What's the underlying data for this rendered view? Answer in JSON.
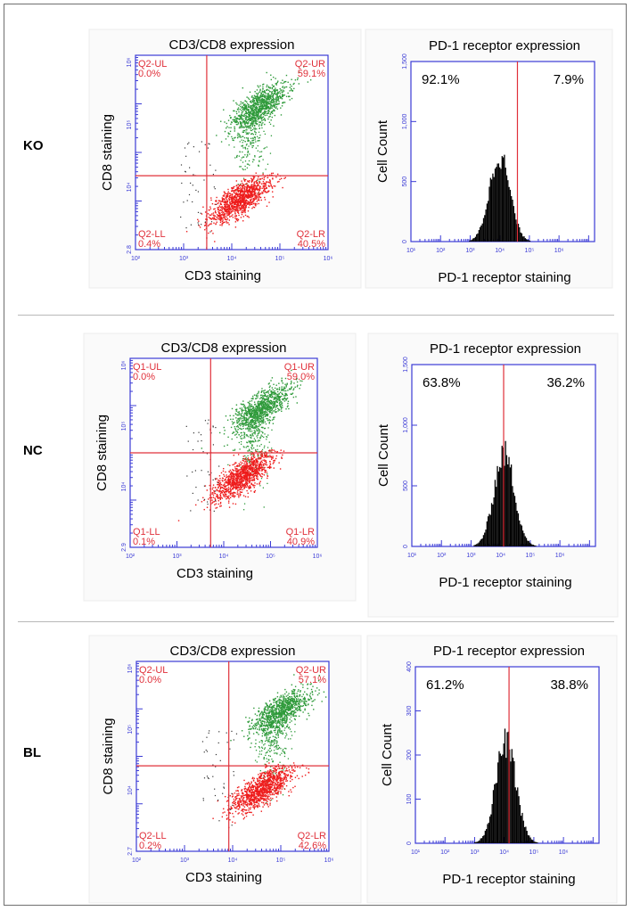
{
  "rows": [
    {
      "label": "KO",
      "scatter": {
        "title": "CD3/CD8 expression",
        "xlabel": "CD3 staining",
        "ylabel": "CD8 staining",
        "x_ticks": [
          "10²",
          "10³",
          "10⁴",
          "10⁵",
          "10⁶"
        ],
        "x_edge": "10^7",
        "y_ticks": [
          "2.8",
          "10⁴",
          "10⁵",
          "10⁶"
        ],
        "y_top": "10^6",
        "quadrants": {
          "ul": {
            "name": "Q2-UL",
            "value": "0.0%"
          },
          "ur": {
            "name": "Q2-UR",
            "value": "59.1%"
          },
          "ll": {
            "name": "Q2-LL",
            "value": "0.4%"
          },
          "lr": {
            "name": "Q2-LR",
            "value": "40.5%"
          }
        },
        "gate_x": 0.37,
        "gate_y": 0.62
      },
      "histogram": {
        "title": "PD-1 receptor expression",
        "xlabel": "PD-1 receptor staining",
        "ylabel": "Cell Count",
        "y_ticks": [
          "0",
          "500",
          "1,000",
          "1,500"
        ],
        "ymax": 1500,
        "x_ticks": [
          "10¹",
          "10²",
          "10³",
          "10⁴",
          "10⁵",
          "10⁶"
        ],
        "x_end": "10^7.2",
        "left_pct": "92.1%",
        "right_pct": "7.9%",
        "peak": 740,
        "center": 0.48,
        "gate": 0.58
      }
    },
    {
      "label": "NC",
      "scatter": {
        "title": "CD3/CD8 expression",
        "xlabel": "CD3 staining",
        "ylabel": "CD8 staining",
        "x_ticks": [
          "10²",
          "10³",
          "10⁴",
          "10⁵",
          "10⁶"
        ],
        "x_edge": "10^6.2",
        "y_ticks": [
          "2.9",
          "10⁴",
          "10⁵",
          "10⁶"
        ],
        "y_top": "10^6.2",
        "quadrants": {
          "ul": {
            "name": "Q1-UL",
            "value": "0.0%"
          },
          "ur": {
            "name": "Q1-UR",
            "value": "59.0%"
          },
          "ll": {
            "name": "Q1-LL",
            "value": "0.1%"
          },
          "lr": {
            "name": "Q1-LR",
            "value": "40.9%"
          }
        },
        "gate_x": 0.43,
        "gate_y": 0.5
      },
      "histogram": {
        "title": "PD-1 receptor expression",
        "xlabel": "PD-1 receptor staining",
        "ylabel": "Cell Count",
        "y_ticks": [
          "0",
          "500",
          "1,000",
          "1,500"
        ],
        "ymax": 1500,
        "x_ticks": [
          "10¹",
          "10²",
          "10³",
          "10⁴",
          "10⁵",
          "10⁶"
        ],
        "x_end": "10^7.2",
        "left_pct": "63.8%",
        "right_pct": "36.2%",
        "peak": 790,
        "center": 0.5,
        "gate": 0.5
      }
    },
    {
      "label": "BL",
      "scatter": {
        "title": "CD3/CD8 expression",
        "xlabel": "CD3 staining",
        "ylabel": "CD8 staining",
        "x_ticks": [
          "10²",
          "10³",
          "10⁴",
          "10⁵",
          "10⁶"
        ],
        "x_edge": "10^6.2",
        "y_ticks": [
          "2.7",
          "10⁴",
          "10⁵",
          "10⁶"
        ],
        "y_top": "10^6.2",
        "quadrants": {
          "ul": {
            "name": "Q2-UL",
            "value": "0.0%"
          },
          "ur": {
            "name": "Q2-UR",
            "value": "57.1%"
          },
          "ll": {
            "name": "Q2-LL",
            "value": "0.2%"
          },
          "lr": {
            "name": "Q2-LR",
            "value": "42.6%"
          }
        },
        "gate_x": 0.48,
        "gate_y": 0.55
      },
      "histogram": {
        "title": "PD-1 receptor expression",
        "xlabel": "PD-1 receptor staining",
        "ylabel": "Cell Count",
        "y_ticks": [
          "0",
          "100",
          "200",
          "300",
          "400"
        ],
        "ymax": 400,
        "x_ticks": [
          "10¹",
          "10²",
          "10³",
          "10⁴",
          "10⁵",
          "10⁶"
        ],
        "x_end": "10^7.2",
        "left_pct": "61.2%",
        "right_pct": "38.8%",
        "peak": 235,
        "center": 0.49,
        "gate": 0.51
      }
    }
  ],
  "chart_data": [
    {
      "type": "scatter",
      "title": "CD3/CD8 expression",
      "xlabel": "CD3 staining",
      "ylabel": "CD8 staining",
      "panel": "KO",
      "quadrant_percent": {
        "UL": 0.0,
        "UR": 59.1,
        "LL": 0.4,
        "LR": 40.5
      }
    },
    {
      "type": "bar",
      "title": "PD-1 receptor expression",
      "xlabel": "PD-1 receptor staining",
      "ylabel": "Cell Count",
      "panel": "KO",
      "ylim": [
        0,
        1500
      ],
      "gate_percent": {
        "left": 92.1,
        "right": 7.9
      },
      "peak_count": 740
    },
    {
      "type": "scatter",
      "title": "CD3/CD8 expression",
      "xlabel": "CD3 staining",
      "ylabel": "CD8 staining",
      "panel": "NC",
      "quadrant_percent": {
        "UL": 0.0,
        "UR": 59.0,
        "LL": 0.1,
        "LR": 40.9
      }
    },
    {
      "type": "bar",
      "title": "PD-1 receptor expression",
      "xlabel": "PD-1 receptor staining",
      "ylabel": "Cell Count",
      "panel": "NC",
      "ylim": [
        0,
        1500
      ],
      "gate_percent": {
        "left": 63.8,
        "right": 36.2
      },
      "peak_count": 790
    },
    {
      "type": "scatter",
      "title": "CD3/CD8 expression",
      "xlabel": "CD3 staining",
      "ylabel": "CD8 staining",
      "panel": "BL",
      "quadrant_percent": {
        "UL": 0.0,
        "UR": 57.1,
        "LL": 0.2,
        "LR": 42.6
      }
    },
    {
      "type": "bar",
      "title": "PD-1 receptor expression",
      "xlabel": "PD-1 receptor staining",
      "ylabel": "Cell Count",
      "panel": "BL",
      "ylim": [
        0,
        400
      ],
      "gate_percent": {
        "left": 61.2,
        "right": 38.8
      },
      "peak_count": 235
    }
  ],
  "colors": {
    "axis": "#3b3bd6",
    "gate": "#e0303a",
    "quad_text": "#e0303a",
    "cd8_pos": "#2e9a3a",
    "cd8_neg": "#ee1c1c",
    "debris": "#333333",
    "hist": "#000000"
  }
}
